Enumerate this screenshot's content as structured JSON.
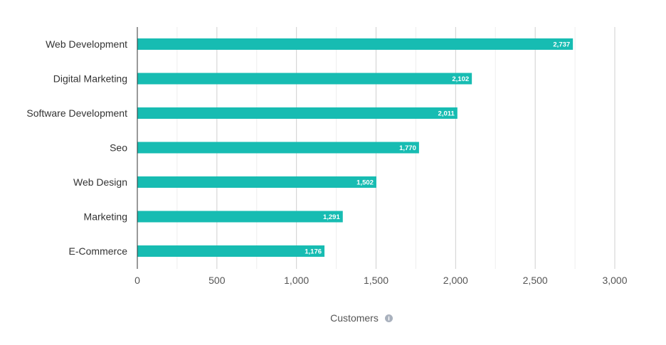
{
  "chart_data": {
    "type": "bar",
    "orientation": "horizontal",
    "categories": [
      "Web Development",
      "Digital Marketing",
      "Software Development",
      "Seo",
      "Web Design",
      "Marketing",
      "E-Commerce"
    ],
    "values": [
      2737,
      2102,
      2011,
      1770,
      1502,
      1291,
      1176
    ],
    "value_labels": [
      "2,737",
      "2,102",
      "2,011",
      "1,770",
      "1,502",
      "1,291",
      "1,176"
    ],
    "xlabel": "Customers",
    "xlim": [
      0,
      3000
    ],
    "x_ticks": [
      0,
      500,
      1000,
      1500,
      2000,
      2500,
      3000
    ],
    "x_tick_labels": [
      "0",
      "500",
      "1,000",
      "1,500",
      "2,000",
      "2,500",
      "3,000"
    ],
    "grid": true,
    "bar_color": "#17bcb2",
    "xlabel_icon": "info-icon"
  }
}
